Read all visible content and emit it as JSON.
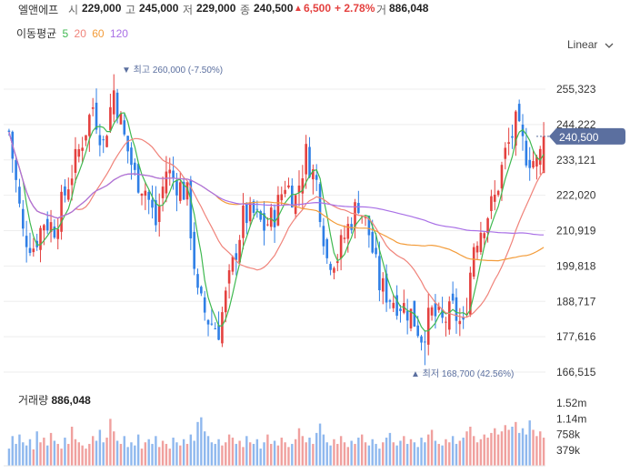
{
  "header": {
    "name": "엘앤에프",
    "open_label": "시",
    "open": "229,000",
    "high_label": "고",
    "high": "245,000",
    "low_label": "저",
    "low": "229,000",
    "close_label": "종",
    "close": "240,500",
    "change_arrow": "▲",
    "change": "6,500",
    "change_pct": "+ 2.78%",
    "volume_label": "거",
    "volume": "886,048"
  },
  "ma_legend": {
    "label": "이동평균",
    "periods": [
      {
        "text": "5",
        "color": "#3fb950"
      },
      {
        "text": "20",
        "color": "#f0837a"
      },
      {
        "text": "60",
        "color": "#f39c3a"
      },
      {
        "text": "120",
        "color": "#a970e6"
      }
    ]
  },
  "scale_toggle": {
    "label": "Linear",
    "icon": "chevron-down-icon"
  },
  "colors": {
    "up": "#e4413f",
    "down": "#2f7fe6",
    "ma5": "#3fb950",
    "ma20": "#f0837a",
    "ma60": "#f39c3a",
    "ma120": "#a970e6",
    "price_tag": "#5b6f9f",
    "vol_up": "#f0a09e",
    "vol_down": "#8fb8ee",
    "grid": "#eeeeee"
  },
  "chart_data": {
    "type": "candlestick",
    "y_ticks": [
      "255,323",
      "244,222",
      "233,121",
      "222,020",
      "210,919",
      "199,818",
      "188,717",
      "177,616",
      "166,515"
    ],
    "y_tick_values": [
      255323,
      244222,
      233121,
      222020,
      210919,
      199818,
      188717,
      177616,
      166515
    ],
    "ylim": [
      166515,
      257500
    ],
    "current_price_label": "240,500",
    "current_price": 240500,
    "max_annotation": {
      "marker": "▼",
      "prefix": "최고",
      "value": "260,000",
      "pct": "(-7.50%)",
      "price": 260000
    },
    "min_annotation": {
      "marker": "▲",
      "prefix": "최저",
      "value": "168,700",
      "pct": "(42.56%)",
      "price": 168700
    },
    "price_waypoints": [
      [
        0,
        242
      ],
      [
        4,
        210
      ],
      [
        7,
        206
      ],
      [
        10,
        214
      ],
      [
        13,
        212
      ],
      [
        17,
        226
      ],
      [
        20,
        236
      ],
      [
        24,
        250
      ],
      [
        27,
        238
      ],
      [
        30,
        255
      ],
      [
        33,
        240
      ],
      [
        36,
        228
      ],
      [
        39,
        224
      ],
      [
        42,
        213
      ],
      [
        45,
        230
      ],
      [
        48,
        226
      ],
      [
        51,
        222
      ],
      [
        54,
        190
      ],
      [
        57,
        183
      ],
      [
        60,
        180
      ],
      [
        64,
        200
      ],
      [
        67,
        215
      ],
      [
        70,
        216
      ],
      [
        73,
        212
      ],
      [
        76,
        216
      ],
      [
        79,
        226
      ],
      [
        82,
        221
      ],
      [
        85,
        235
      ],
      [
        88,
        226
      ],
      [
        91,
        202
      ],
      [
        94,
        203
      ],
      [
        97,
        212
      ],
      [
        100,
        220
      ],
      [
        103,
        210
      ],
      [
        106,
        194
      ],
      [
        109,
        190
      ],
      [
        112,
        188
      ],
      [
        115,
        185
      ],
      [
        118,
        178
      ],
      [
        121,
        185
      ],
      [
        124,
        182
      ],
      [
        127,
        186
      ],
      [
        130,
        180
      ],
      [
        133,
        207
      ],
      [
        136,
        214
      ],
      [
        139,
        221
      ],
      [
        142,
        235
      ],
      [
        145,
        244
      ],
      [
        148,
        235
      ],
      [
        151,
        232
      ],
      [
        153,
        238
      ]
    ],
    "volume": {
      "title": "거래량",
      "value": "886,048",
      "y_ticks": [
        "1.52m",
        "1.14m",
        "758k",
        "379k"
      ],
      "y_tick_values": [
        1520000,
        1140000,
        758000,
        379000
      ],
      "ylim": [
        0,
        1900000
      ],
      "levels": [
        0.22,
        0.38,
        0.28,
        0.4,
        0.3,
        0.26,
        0.34,
        0.21,
        0.44,
        0.3,
        0.36,
        0.26,
        0.42,
        0.32,
        0.28,
        0.22,
        0.36,
        0.28,
        0.5,
        0.34,
        0.3,
        0.26,
        0.22,
        0.28,
        0.38,
        0.32,
        0.46,
        0.3,
        0.36,
        0.6,
        0.44,
        0.32,
        0.28,
        0.38,
        0.24,
        0.3,
        0.26,
        0.4,
        0.22,
        0.3,
        0.34,
        0.28,
        0.38,
        0.24,
        0.32,
        0.28,
        0.22,
        0.36,
        0.3,
        0.26,
        0.34,
        0.28,
        0.4,
        0.32,
        0.56,
        0.62,
        0.44,
        0.38,
        0.3,
        0.28,
        0.34,
        0.26,
        0.3,
        0.4,
        0.36,
        0.28,
        0.32,
        0.24,
        0.38,
        0.3,
        0.28,
        0.34,
        0.22,
        0.3,
        0.4,
        0.28,
        0.32,
        0.26,
        0.36,
        0.3,
        0.24,
        0.28,
        0.34,
        0.48,
        0.38,
        0.3,
        0.36,
        0.28,
        0.42,
        0.54,
        0.4,
        0.3,
        0.26,
        0.34,
        0.28,
        0.38,
        0.3,
        0.24,
        0.32,
        0.28,
        0.36,
        0.4,
        0.3,
        0.26,
        0.34,
        0.28,
        0.22,
        0.3,
        0.36,
        0.42,
        0.3,
        0.26,
        0.32,
        0.38,
        0.28,
        0.34,
        0.3,
        0.24,
        0.36,
        0.3,
        0.4,
        0.46,
        0.32,
        0.28,
        0.26,
        0.34,
        0.3,
        0.38,
        0.28,
        0.32,
        0.36,
        0.44,
        0.5,
        0.38,
        0.3,
        0.34,
        0.4,
        0.36,
        0.42,
        0.48,
        0.4,
        0.44,
        0.52,
        0.46,
        0.5,
        0.56,
        0.42,
        0.48,
        0.4,
        0.58,
        0.46,
        0.38,
        0.44,
        0.36
      ]
    }
  }
}
